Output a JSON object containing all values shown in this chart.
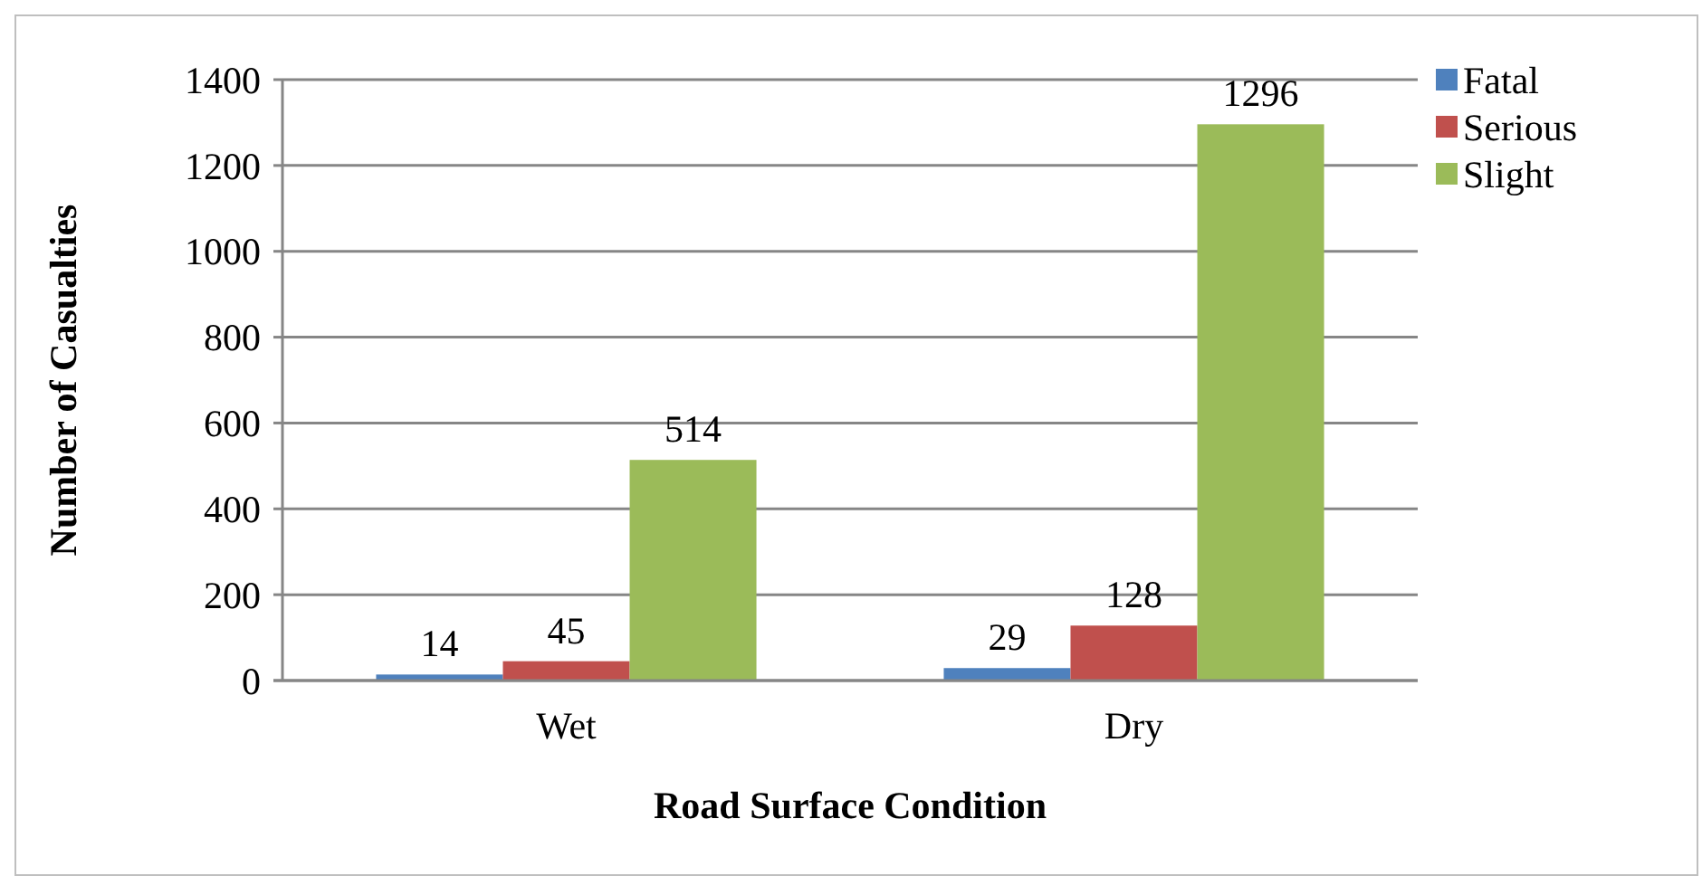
{
  "chart_data": {
    "type": "bar",
    "xlabel": "Road Surface Condition",
    "ylabel": "Number of Casualties",
    "categories": [
      "Wet",
      "Dry"
    ],
    "series": [
      {
        "name": "Fatal",
        "color": "#4f81bd",
        "values": [
          14,
          29
        ]
      },
      {
        "name": "Serious",
        "color": "#c0504d",
        "values": [
          45,
          128
        ]
      },
      {
        "name": "Slight",
        "color": "#9bbb59",
        "values": [
          514,
          1296
        ]
      }
    ],
    "ylim": [
      0,
      1400
    ],
    "yticks": [
      0,
      200,
      400,
      600,
      800,
      1000,
      1200,
      1400
    ],
    "grid": "y",
    "legend": "right",
    "data_labels": true
  }
}
